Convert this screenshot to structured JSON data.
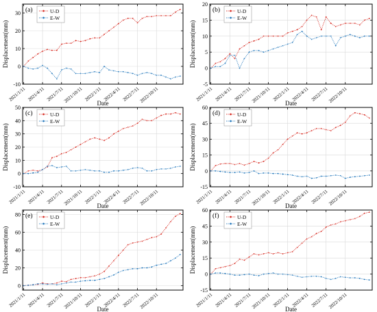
{
  "colors": {
    "ud": "#d9342b",
    "ew": "#2f7fbf",
    "axis": "#000000",
    "grid": "#d9d9d9"
  },
  "chart_data": [
    {
      "type": "line",
      "panel_label": "(a)",
      "xlabel": "Date",
      "ylabel": "Displacement(mm)",
      "x_ticks": [
        "2021/1/11",
        "2021/4/11",
        "2021/7/11",
        "2021/10/11",
        "2022/1/11",
        "2022/4/11",
        "2022/7/11",
        "2022/10/11"
      ],
      "ylim": [
        -10,
        35
      ],
      "y_ticks": [
        -10,
        0,
        10,
        20,
        30
      ],
      "grid": true,
      "legend_position": "top-left",
      "series": [
        {
          "name": "U-D",
          "color": "ud",
          "x": [
            0,
            0.25,
            0.5,
            0.75,
            1,
            1.25,
            1.5,
            1.75,
            2,
            2.25,
            2.5,
            2.75,
            3,
            3.25,
            3.5,
            3.75,
            4,
            4.25,
            4.5,
            4.75,
            5,
            5.25,
            5.5,
            5.75,
            6,
            6.25,
            6.5,
            6.75,
            7,
            7.25,
            7.5,
            7.75,
            8,
            8.25
          ],
          "values": [
            0,
            3,
            5,
            7,
            8.5,
            9.5,
            9,
            9,
            12.5,
            13,
            13,
            14.5,
            14,
            14.5,
            15.5,
            16,
            16,
            18,
            20,
            22,
            24,
            26,
            27,
            27,
            24.5,
            27,
            28,
            28,
            28.5,
            28.5,
            28.5,
            28.5,
            30.5,
            32
          ]
        },
        {
          "name": "E-W",
          "color": "ew",
          "x": [
            0,
            0.25,
            0.5,
            0.75,
            1,
            1.25,
            1.5,
            1.75,
            2,
            2.25,
            2.5,
            2.75,
            3,
            3.25,
            3.5,
            3.75,
            4,
            4.25,
            4.5,
            4.75,
            5,
            5.25,
            5.5,
            5.75,
            6,
            6.25,
            6.5,
            6.75,
            7,
            7.25,
            7.5,
            7.75,
            8,
            8.25
          ],
          "values": [
            0,
            -1,
            -1.5,
            -1,
            0.5,
            -1,
            -4,
            -7,
            -2,
            -1,
            -1.5,
            -4,
            -4,
            -4,
            -3.5,
            -3,
            -3.5,
            0,
            -2,
            -2.5,
            -3,
            -3,
            -3.5,
            -4,
            -5,
            -4,
            -3.5,
            -4,
            -5,
            -5,
            -6,
            -7,
            -6,
            -5.5
          ]
        }
      ]
    },
    {
      "type": "line",
      "panel_label": "(b)",
      "xlabel": "Date",
      "ylabel": "Displacement(mm)",
      "x_ticks": [
        "2021/1/11",
        "2021/4/11",
        "2021/7/11",
        "2021/10/11",
        "2022/1/11",
        "2022/4/11",
        "2022/7/11",
        "2022/10/11"
      ],
      "ylim": [
        -5,
        20
      ],
      "y_ticks": [
        -5,
        0,
        5,
        10,
        15,
        20
      ],
      "grid": true,
      "legend_position": "top-left",
      "series": [
        {
          "name": "U-D",
          "color": "ud",
          "x": [
            0,
            0.25,
            0.5,
            0.75,
            1,
            1.25,
            1.5,
            1.75,
            2,
            2.25,
            2.5,
            2.75,
            3,
            3.25,
            3.5,
            3.75,
            4,
            4.25,
            4.5,
            4.75,
            5,
            5.25,
            5.5,
            5.75,
            6,
            6.25,
            6.5,
            6.75,
            7,
            7.25,
            7.5,
            7.75,
            8,
            8.25
          ],
          "values": [
            0,
            1.5,
            2,
            3,
            4.5,
            3,
            6,
            7,
            8,
            8.5,
            9,
            10,
            10,
            10,
            10,
            10,
            11,
            11.5,
            12,
            13,
            15,
            16.5,
            16,
            12,
            16,
            14,
            13,
            13.5,
            14,
            14,
            14,
            13.5,
            15,
            15.5
          ]
        },
        {
          "name": "E-W",
          "color": "ew",
          "x": [
            0,
            0.25,
            0.5,
            0.75,
            1,
            1.25,
            1.5,
            1.75,
            2,
            2.25,
            2.5,
            2.75,
            3,
            3.25,
            3.5,
            3.75,
            4,
            4.25,
            4.5,
            4.75,
            5,
            5.25,
            5.5,
            5.75,
            6,
            6.25,
            6.5,
            6.75,
            7,
            7.25,
            7.5,
            7.75,
            8,
            8.25
          ],
          "values": [
            0,
            0.5,
            0.5,
            1.5,
            4,
            4,
            0,
            3,
            5,
            5.5,
            5.5,
            5,
            5.5,
            6,
            6.5,
            7,
            7.5,
            8,
            10.5,
            11.5,
            10,
            9,
            9.5,
            10,
            10,
            10,
            7,
            9.5,
            10,
            10.5,
            10,
            9.5,
            10,
            10
          ]
        }
      ]
    },
    {
      "type": "line",
      "panel_label": "(c)",
      "xlabel": "Date",
      "ylabel": "Displacement(mm)",
      "x_ticks": [
        "2021/1/11",
        "2021/4/11",
        "2021/7/11",
        "2021/10/11",
        "2022/1/11",
        "2022/4/11",
        "2022/7/11",
        "2022/10/11"
      ],
      "ylim": [
        -10,
        50
      ],
      "y_ticks": [
        -10,
        0,
        10,
        20,
        30,
        40,
        50
      ],
      "grid": true,
      "legend_position": "top-left",
      "series": [
        {
          "name": "U-D",
          "color": "ud",
          "x": [
            0,
            0.25,
            0.5,
            0.75,
            1,
            1.25,
            1.5,
            1.75,
            2,
            2.25,
            2.5,
            2.75,
            3,
            3.25,
            3.5,
            3.75,
            4,
            4.25,
            4.5,
            4.75,
            5,
            5.25,
            5.5,
            5.75,
            6,
            6.25,
            6.5,
            6.75,
            7,
            7.25,
            7.5,
            7.75,
            8,
            8.25
          ],
          "values": [
            0,
            2,
            2.5,
            2,
            3,
            5,
            12,
            13,
            15,
            16,
            18,
            20,
            22,
            24,
            26,
            27,
            26,
            25,
            27,
            30,
            32,
            34,
            35,
            36,
            38,
            41,
            40,
            40,
            42,
            44,
            45,
            45,
            46,
            45
          ]
        },
        {
          "name": "E-W",
          "color": "ew",
          "x": [
            0,
            0.25,
            0.5,
            0.75,
            1,
            1.25,
            1.5,
            1.75,
            2,
            2.25,
            2.5,
            2.75,
            3,
            3.25,
            3.5,
            3.75,
            4,
            4.25,
            4.5,
            4.75,
            5,
            5.25,
            5.5,
            5.75,
            6,
            6.25,
            6.5,
            6.75,
            7,
            7.25,
            7.5,
            7.75,
            8,
            8.25
          ],
          "values": [
            0,
            0,
            0.5,
            1,
            3,
            5.5,
            6,
            4.5,
            5,
            5.5,
            2,
            2,
            2.5,
            3,
            2.5,
            2,
            2,
            1,
            1,
            2,
            2,
            2.5,
            3,
            4,
            4.5,
            4,
            2,
            2,
            3,
            3.5,
            3.5,
            4,
            5,
            5.5
          ]
        }
      ]
    },
    {
      "type": "line",
      "panel_label": "(d)",
      "xlabel": "Date",
      "ylabel": "Displacement(mm)",
      "x_ticks": [
        "2021/1/11",
        "2021/4/11",
        "2021/7/11",
        "2021/10/11",
        "2022/1/11",
        "2022/4/11",
        "2022/7/11",
        "2022/10/11"
      ],
      "ylim": [
        -15,
        60
      ],
      "y_ticks": [
        -15,
        0,
        15,
        30,
        45,
        60
      ],
      "grid": true,
      "legend_position": "top-left",
      "series": [
        {
          "name": "U-D",
          "color": "ud",
          "x": [
            0,
            0.25,
            0.5,
            0.75,
            1,
            1.25,
            1.5,
            1.75,
            2,
            2.25,
            2.5,
            2.75,
            3,
            3.25,
            3.5,
            3.75,
            4,
            4.25,
            4.5,
            4.75,
            5,
            5.25,
            5.5,
            5.75,
            6,
            6.25,
            6.5,
            6.75,
            7,
            7.25,
            7.5,
            7.75,
            8,
            8.25
          ],
          "values": [
            0,
            5,
            6.5,
            7,
            7,
            6,
            7,
            5.5,
            7,
            9,
            7.5,
            9,
            12,
            17,
            20,
            25,
            30,
            33,
            36,
            35,
            36,
            38,
            40,
            40,
            39,
            38,
            41,
            43,
            46,
            52,
            55,
            54,
            53,
            50
          ]
        },
        {
          "name": "E-W",
          "color": "ew",
          "x": [
            0,
            0.25,
            0.5,
            0.75,
            1,
            1.25,
            1.5,
            1.75,
            2,
            2.25,
            2.5,
            2.75,
            3,
            3.25,
            3.5,
            3.75,
            4,
            4.25,
            4.5,
            4.75,
            5,
            5.25,
            5.5,
            5.75,
            6,
            6.25,
            6.5,
            6.75,
            7,
            7.25,
            7.5,
            7.75,
            8,
            8.25
          ],
          "values": [
            0,
            0,
            -0.5,
            -1,
            -1.5,
            -1.5,
            -1,
            -2,
            -1.5,
            0,
            -2.5,
            -2,
            -2,
            -2.5,
            -2.5,
            -3,
            -3.5,
            -4,
            -5,
            -5.5,
            -5,
            -7,
            -6.5,
            -5,
            -5,
            -4.5,
            -4,
            -4.5,
            -7,
            -6,
            -5.5,
            -5,
            -4.5,
            -4
          ]
        }
      ]
    },
    {
      "type": "line",
      "panel_label": "(e)",
      "xlabel": "Date",
      "ylabel": "Displacement(mm)",
      "x_ticks": [
        "2021/1/11",
        "2021/4/11",
        "2021/7/11",
        "2021/10/11",
        "2022/1/11",
        "2022/4/11",
        "2022/7/11",
        "2022/10/11"
      ],
      "ylim": [
        -5,
        85
      ],
      "y_ticks": [
        0,
        20,
        40,
        60,
        80
      ],
      "grid": true,
      "legend_position": "top-left",
      "series": [
        {
          "name": "U-D",
          "color": "ud",
          "x": [
            0,
            0.25,
            0.5,
            0.75,
            1,
            1.25,
            1.5,
            1.75,
            2,
            2.25,
            2.5,
            2.75,
            3,
            3.25,
            3.5,
            3.75,
            4,
            4.25,
            4.5,
            4.75,
            5,
            5.25,
            5.5,
            5.75,
            6,
            6.25,
            6.5,
            6.75,
            7,
            7.25,
            7.5,
            7.75,
            8,
            8.25
          ],
          "values": [
            0,
            0.5,
            1,
            1.5,
            3,
            2,
            2,
            3,
            5,
            4.5,
            7,
            8,
            9,
            9,
            10,
            11,
            13,
            16,
            22,
            28,
            34,
            40,
            46,
            48,
            49,
            50,
            52,
            54,
            55,
            58,
            65,
            72,
            78,
            81
          ]
        },
        {
          "name": "E-W",
          "color": "ew",
          "x": [
            0,
            0.25,
            0.5,
            0.75,
            1,
            1.25,
            1.5,
            1.75,
            2,
            2.25,
            2.5,
            2.75,
            3,
            3.25,
            3.5,
            3.75,
            4,
            4.25,
            4.5,
            4.75,
            5,
            5.25,
            5.5,
            5.75,
            6,
            6.25,
            6.5,
            6.75,
            7,
            7.25,
            7.5,
            7.75,
            8,
            8.25
          ],
          "values": [
            0,
            0.5,
            1,
            2,
            2,
            1.5,
            2,
            1,
            2,
            3,
            4,
            4,
            5,
            5.5,
            6,
            6,
            7,
            8,
            10,
            12,
            15,
            17,
            18,
            19,
            19,
            20,
            20,
            21,
            23,
            24,
            25,
            28,
            31,
            35
          ]
        }
      ]
    },
    {
      "type": "line",
      "panel_label": "(f)",
      "xlabel": "Date",
      "ylabel": "Displacement(mm)",
      "x_ticks": [
        "2021/1/11",
        "2021/4/11",
        "2021/7/11",
        "2021/10/11",
        "2022/1/11",
        "2022/4/11",
        "2022/7/11",
        "2022/10/11"
      ],
      "ylim": [
        -15,
        60
      ],
      "y_ticks": [
        -15,
        0,
        15,
        30,
        45,
        60
      ],
      "grid": true,
      "legend_position": "top-left",
      "series": [
        {
          "name": "U-D",
          "color": "ud",
          "x": [
            0,
            0.25,
            0.5,
            0.75,
            1,
            1.25,
            1.5,
            1.75,
            2,
            2.25,
            2.5,
            2.75,
            3,
            3.25,
            3.5,
            3.75,
            4,
            4.25,
            4.5,
            4.75,
            5,
            5.25,
            5.5,
            5.75,
            6,
            6.25,
            6.5,
            6.75,
            7,
            7.25,
            7.5,
            7.75,
            8,
            8.25
          ],
          "values": [
            0,
            5,
            6,
            7,
            8,
            10,
            14,
            13,
            16,
            19,
            18,
            19,
            20,
            19,
            20,
            19,
            20,
            21,
            25,
            29,
            33,
            35,
            38,
            40,
            44,
            46,
            47,
            49,
            50,
            51,
            52,
            54,
            57,
            58
          ]
        },
        {
          "name": "E-W",
          "color": "ew",
          "x": [
            0,
            0.25,
            0.5,
            0.75,
            1,
            1.25,
            1.5,
            1.75,
            2,
            2.25,
            2.5,
            2.75,
            3,
            3.25,
            3.5,
            3.75,
            4,
            4.25,
            4.5,
            4.75,
            5,
            5.25,
            5.5,
            5.75,
            6,
            6.25,
            6.5,
            6.75,
            7,
            7.25,
            7.5,
            7.75,
            8,
            8.25
          ],
          "values": [
            0,
            1,
            1,
            0.5,
            0,
            -1,
            -1,
            -0.5,
            0,
            -1,
            -1.5,
            0,
            0.5,
            1,
            0,
            0,
            -0.5,
            -1,
            -2,
            -3,
            -2.5,
            -2,
            -2,
            -2.5,
            -4,
            -5,
            -4,
            -2.5,
            -3,
            -3.5,
            -3.5,
            -4,
            -5,
            -5.5
          ]
        }
      ]
    }
  ]
}
